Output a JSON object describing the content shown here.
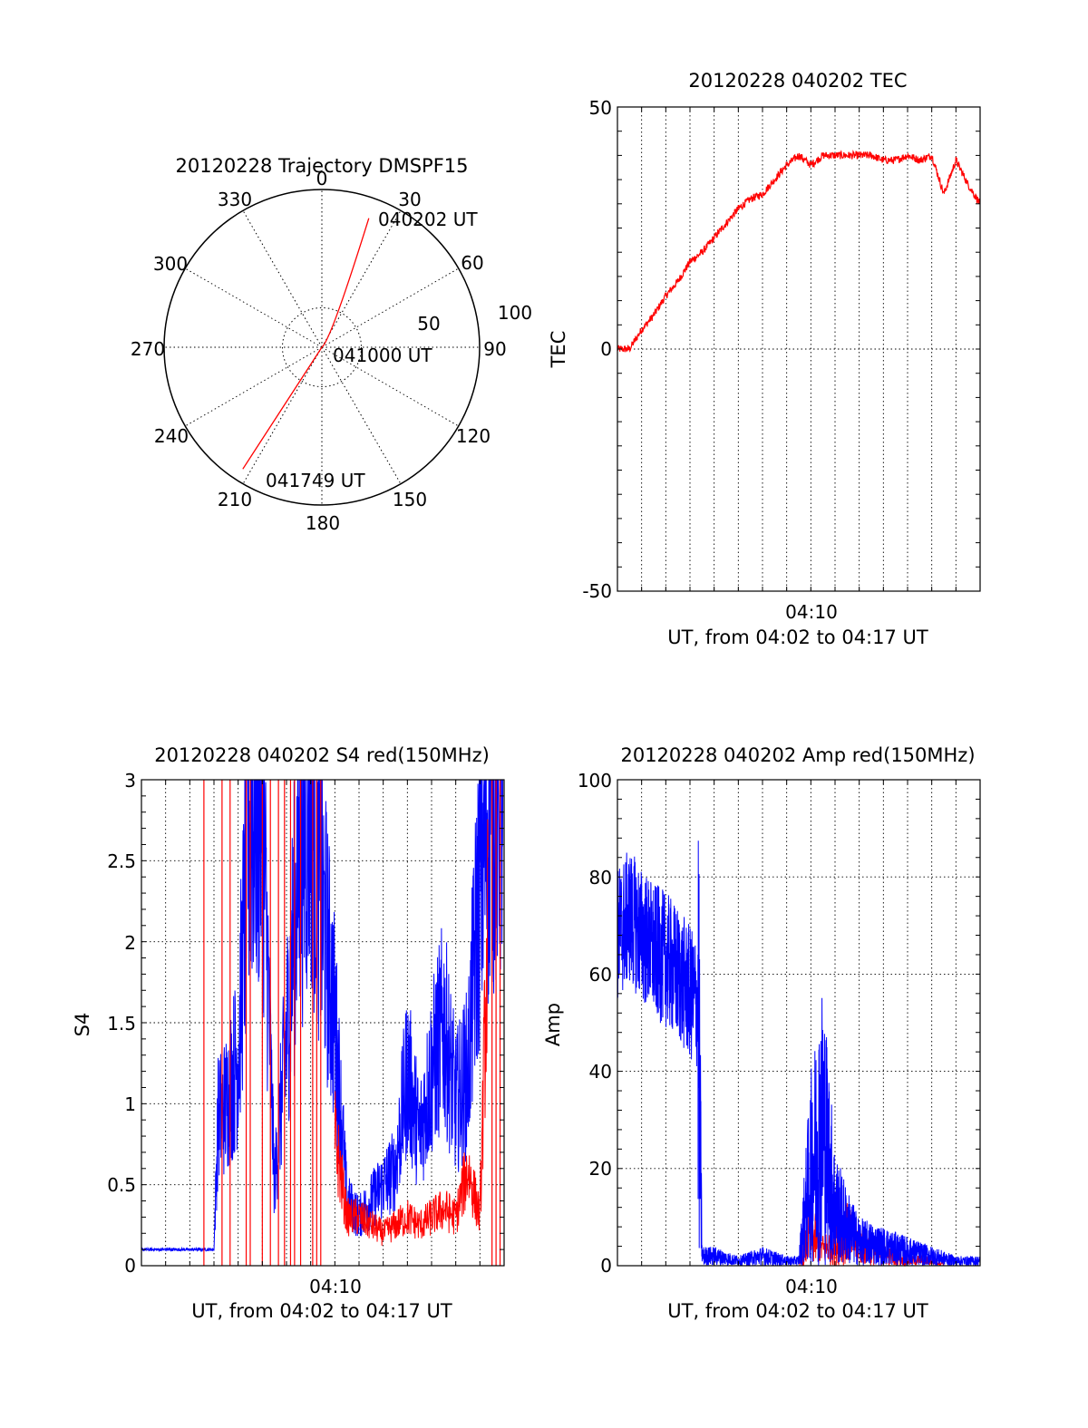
{
  "colors": {
    "red": "#ff0000",
    "blue": "#0000ff",
    "axis": "#000000",
    "grid": "#000000"
  },
  "panels": {
    "polar": {
      "title": "20120228 Trajectory DMSPF15",
      "angle_labels": [
        "0",
        "30",
        "60",
        "90",
        "120",
        "150",
        "180",
        "210",
        "240",
        "270",
        "300",
        "330"
      ],
      "radius_labels": [
        "50",
        "100"
      ],
      "time_labels": [
        "040202 UT",
        "041000 UT",
        "041749 UT"
      ]
    },
    "tec": {
      "title": "20120228 040202 TEC",
      "ylabel": "TEC",
      "xlabel": "UT, from 04:02 to 04:17 UT",
      "xtick": "04:10",
      "yticks": [
        "50",
        "0",
        "-50"
      ]
    },
    "s4": {
      "title": "20120228 040202 S4 red(150MHz)",
      "ylabel": "S4",
      "xlabel": "UT, from 04:02 to 04:17 UT",
      "xtick": "04:10",
      "yticks": [
        "3",
        "2.5",
        "2",
        "1.5",
        "1",
        "0.5",
        "0"
      ]
    },
    "amp": {
      "title": "20120228 040202 Amp red(150MHz)",
      "ylabel": "Amp",
      "xlabel": "UT, from 04:02 to 04:17 UT",
      "xtick": "04:10",
      "yticks": [
        "100",
        "80",
        "60",
        "40",
        "20",
        "0"
      ]
    }
  },
  "chart_data": [
    {
      "type": "scatter",
      "title": "20120228 Trajectory DMSPF15",
      "angular_axis_deg": [
        0,
        30,
        60,
        90,
        120,
        150,
        180,
        210,
        240,
        270,
        300,
        330
      ],
      "radial_axis": [
        0,
        50,
        100
      ],
      "series": [
        {
          "color": "#ff0000",
          "points": [
            {
              "azimuth_deg": 20,
              "radius": 87,
              "label": "040202 UT"
            },
            {
              "azimuth_deg": 0,
              "radius": 0,
              "label": "041000 UT"
            },
            {
              "azimuth_deg": 213,
              "radius": 92,
              "label": "041749 UT"
            }
          ]
        }
      ]
    },
    {
      "type": "line",
      "title": "20120228 040202 TEC",
      "xlabel": "UT, from 04:02 to 04:17 UT",
      "ylabel": "TEC",
      "xlim": [
        "04:02",
        "04:17"
      ],
      "ylim": [
        -50,
        50
      ],
      "xticks": [
        "04:10"
      ],
      "grid": true,
      "series": [
        {
          "color": "#ff0000",
          "x": [
            "04:02:00",
            "04:02:30",
            "04:03:00",
            "04:03:30",
            "04:04:00",
            "04:04:30",
            "04:05:00",
            "04:05:30",
            "04:06:00",
            "04:06:30",
            "04:07:00",
            "04:07:30",
            "04:08:00",
            "04:08:30",
            "04:09:00",
            "04:09:30",
            "04:10:00",
            "04:10:30",
            "04:11:00",
            "04:11:30",
            "04:12:00",
            "04:12:30",
            "04:13:00",
            "04:13:30",
            "04:14:00",
            "04:14:30",
            "04:15:00",
            "04:15:30",
            "04:16:00",
            "04:16:30",
            "04:17:00"
          ],
          "y": [
            0,
            0,
            4,
            7,
            11,
            14,
            18,
            20,
            23,
            26,
            29,
            31,
            32,
            35,
            38,
            40,
            38,
            40,
            40,
            40,
            40,
            40,
            39,
            39,
            40,
            39,
            40,
            32,
            39,
            34,
            30
          ]
        }
      ]
    },
    {
      "type": "line",
      "title": "20120228 040202 S4 red(150MHz)",
      "xlabel": "UT, from 04:02 to 04:17 UT",
      "ylabel": "S4",
      "xlim": [
        "04:02",
        "04:17"
      ],
      "ylim": [
        0,
        3
      ],
      "xticks": [
        "04:10"
      ],
      "grid": true,
      "series": [
        {
          "color": "#0000ff",
          "x": [
            "04:02:00",
            "04:03:00",
            "04:04:00",
            "04:05:00",
            "04:05:10",
            "04:05:30",
            "04:06:00",
            "04:06:30",
            "04:07:00",
            "04:07:30",
            "04:08:00",
            "04:08:30",
            "04:09:00",
            "04:09:30",
            "04:10:00",
            "04:10:30",
            "04:11:00",
            "04:11:30",
            "04:12:00",
            "04:12:30",
            "04:13:00",
            "04:13:30",
            "04:14:00",
            "04:14:30",
            "04:15:00",
            "04:15:30",
            "04:16:00",
            "04:16:30",
            "04:17:00"
          ],
          "y": [
            0.1,
            0.1,
            0.1,
            0.1,
            0.9,
            1.0,
            1.3,
            2.9,
            2.9,
            0.5,
            1.4,
            2.5,
            3.0,
            2.2,
            1.5,
            0.4,
            0.3,
            0.4,
            0.5,
            0.6,
            1.2,
            0.8,
            1.2,
            1.5,
            1.0,
            1.2,
            2.4,
            3.0,
            3.0
          ]
        },
        {
          "color": "#ff0000",
          "x": [
            "04:02:00",
            "04:04:00",
            "04:05:00",
            "04:05:30",
            "04:06:00",
            "04:06:30",
            "04:07:00",
            "04:07:30",
            "04:08:00",
            "04:08:30",
            "04:09:00",
            "04:09:30",
            "04:10:00",
            "04:10:30",
            "04:11:00",
            "04:11:30",
            "04:12:00",
            "04:12:30",
            "04:13:00",
            "04:13:30",
            "04:14:00",
            "04:14:30",
            "04:15:00",
            "04:15:30",
            "04:16:00",
            "04:16:30",
            "04:17:00"
          ],
          "y": [
            null,
            null,
            null,
            3.0,
            3.0,
            3.0,
            3.0,
            3.0,
            3.0,
            3.0,
            3.0,
            3.0,
            0.8,
            0.3,
            0.3,
            0.25,
            0.2,
            0.25,
            0.3,
            0.25,
            0.3,
            0.35,
            0.3,
            0.6,
            0.3,
            3.0,
            3.0
          ]
        }
      ]
    },
    {
      "type": "line",
      "title": "20120228 040202 Amp red(150MHz)",
      "xlabel": "UT, from 04:02 to 04:17 UT",
      "ylabel": "Amp",
      "xlim": [
        "04:02",
        "04:17"
      ],
      "ylim": [
        0,
        100
      ],
      "xticks": [
        "04:10"
      ],
      "grid": true,
      "series": [
        {
          "color": "#0000ff",
          "x": [
            "04:02:00",
            "04:02:30",
            "04:03:00",
            "04:03:30",
            "04:04:00",
            "04:04:30",
            "04:05:00",
            "04:05:20",
            "04:05:30",
            "04:06:00",
            "04:07:00",
            "04:08:00",
            "04:09:00",
            "04:09:30",
            "04:10:00",
            "04:10:30",
            "04:11:00",
            "04:11:30",
            "04:12:00",
            "04:13:00",
            "04:14:00",
            "04:15:00",
            "04:16:00",
            "04:17:00"
          ],
          "y": [
            68,
            72,
            68,
            65,
            63,
            60,
            56,
            54,
            2,
            2,
            1,
            2,
            1,
            1,
            20,
            30,
            12,
            8,
            5,
            4,
            3,
            2,
            1,
            1
          ]
        },
        {
          "color": "#ff0000",
          "x": [
            "04:02:00",
            "04:05:00",
            "04:09:00",
            "04:09:30",
            "04:10:00",
            "04:10:30",
            "04:11:00",
            "04:11:30",
            "04:12:00",
            "04:13:00",
            "04:14:00",
            "04:15:00",
            "04:16:00",
            "04:17:00"
          ],
          "y": [
            0,
            0,
            0,
            0,
            6,
            3,
            4,
            6,
            4,
            2,
            1,
            1,
            0,
            0
          ]
        }
      ]
    }
  ]
}
